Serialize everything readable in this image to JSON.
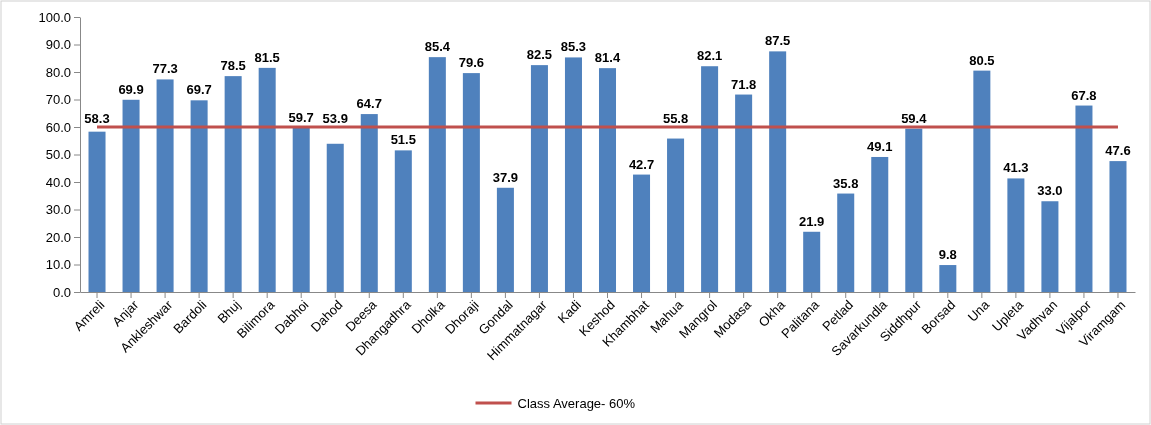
{
  "chart_data": {
    "type": "bar",
    "categories": [
      "Amreli",
      "Anjar",
      "Ankleshwar",
      "Bardoli",
      "Bhuj",
      "Bilimora",
      "Dabhoi",
      "Dahod",
      "Deesa",
      "Dhangadhra",
      "Dholka",
      "Dhoraji",
      "Gondal",
      "Himmatnagar",
      "Kadi",
      "Keshod",
      "Khambhat",
      "Mahua",
      "Mangrol",
      "Modasa",
      "Okha",
      "Palitana",
      "Petlad",
      "Savarkundla",
      "Siddhpur",
      "Borsad",
      "Una",
      "Upleta",
      "Vadhvan",
      "Vijalpor",
      "Viramgam"
    ],
    "series": [
      {
        "color": "#4f81bd",
        "values": [
          58.3,
          69.9,
          77.3,
          69.7,
          78.5,
          81.5,
          59.7,
          53.9,
          64.7,
          51.5,
          85.4,
          79.6,
          37.9,
          82.5,
          85.3,
          81.4,
          42.7,
          55.8,
          82.1,
          71.8,
          87.5,
          21.9,
          35.8,
          49.1,
          59.4,
          9.8,
          80.5,
          41.3,
          33.0,
          67.8,
          47.6
        ],
        "value_labels": [
          "58.3",
          "69.9",
          "77.3",
          "69.7",
          "78.5",
          "81.5",
          "59.7",
          "53.9",
          "64.7",
          "51.5",
          "85.4",
          "79.6",
          "37.9",
          "82.5",
          "85.3",
          "81.4",
          "42.7",
          "55.8",
          "82.1",
          "71.8",
          "87.5",
          "21.9",
          "35.8",
          "49.1",
          "59.4",
          "9.8",
          "80.5",
          "41.3",
          "33.0",
          "67.8",
          "47.6"
        ]
      },
      {
        "type": "line",
        "name": "Class Average- 60%",
        "color": "#c0504d",
        "values": [
          60,
          60,
          60,
          60,
          60,
          60,
          60,
          60,
          60,
          60,
          60,
          60,
          60,
          60,
          60,
          60,
          60,
          60,
          60,
          60,
          60,
          60,
          60,
          60,
          60,
          60,
          60,
          60,
          60,
          60,
          60
        ]
      }
    ],
    "ylim": [
      0,
      100
    ],
    "yticks": [
      {
        "value": 0,
        "label": "0.0"
      },
      {
        "value": 10,
        "label": "10.0"
      },
      {
        "value": 20,
        "label": "20.0"
      },
      {
        "value": 30,
        "label": "30.0"
      },
      {
        "value": 40,
        "label": "40.0"
      },
      {
        "value": 50,
        "label": "50.0"
      },
      {
        "value": 60,
        "label": "60.0"
      },
      {
        "value": 70,
        "label": "70.0"
      },
      {
        "value": 80,
        "label": "80.0"
      },
      {
        "value": 90,
        "label": "90.0"
      },
      {
        "value": 100,
        "label": "100.0"
      }
    ],
    "legend": "bottom",
    "marker": "none",
    "line_style": "solid"
  }
}
